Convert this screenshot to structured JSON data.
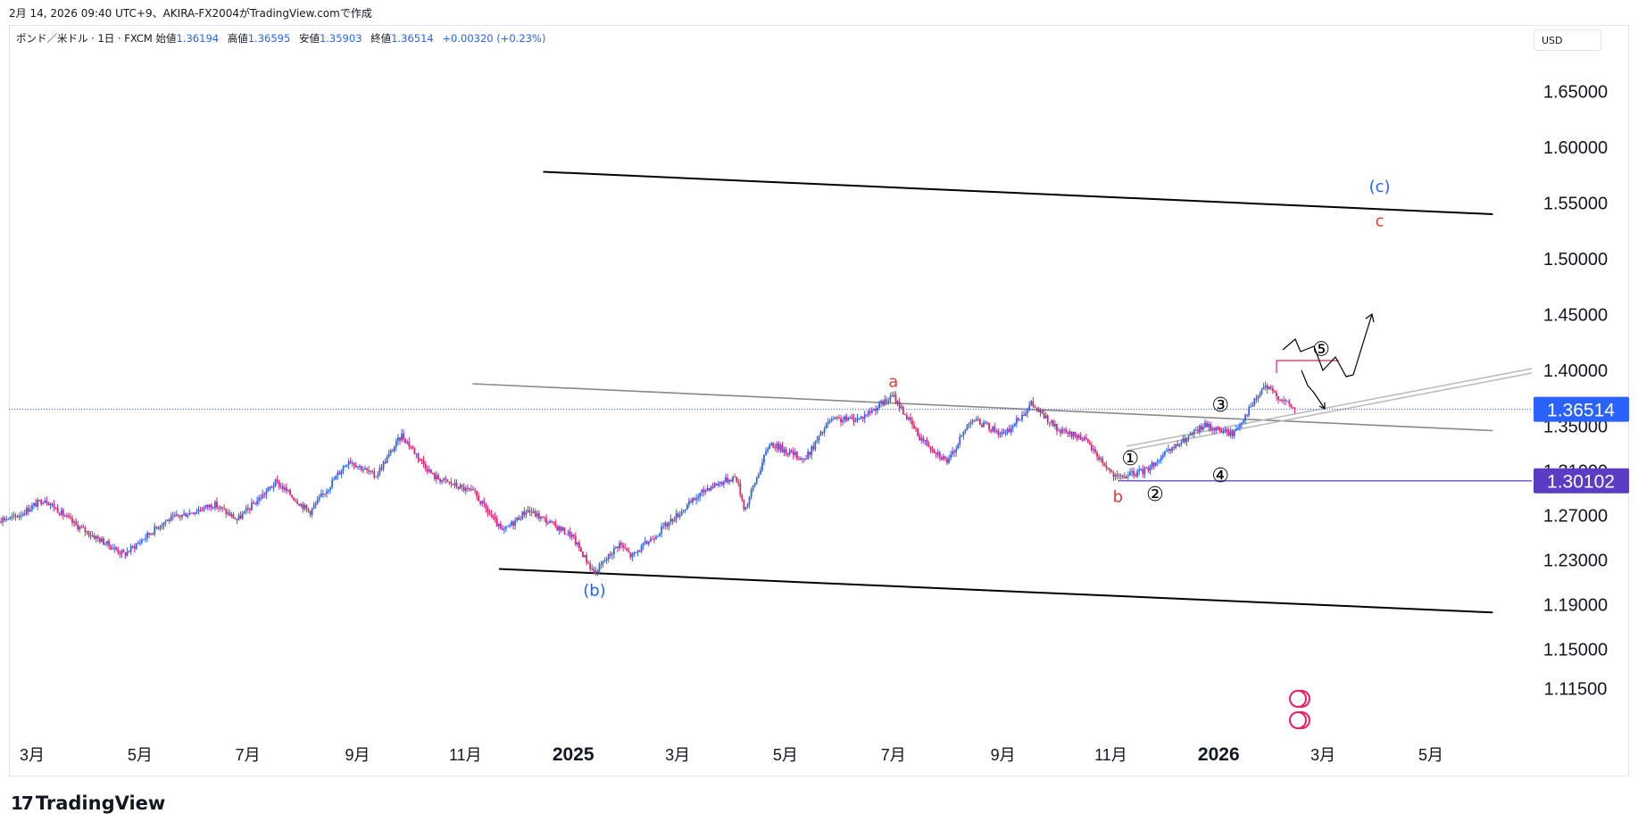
{
  "header": {
    "timestamp": "2月 14, 2026 09:40 UTC+9、AKIRA-FX2004がTradingView.comで作成"
  },
  "legend": {
    "symbol": "ポンド／米ドル · 1日 · FXCM",
    "open_label": "始値",
    "open": "1.36194",
    "high_label": "高値",
    "high": "1.36595",
    "low_label": "安値",
    "low": "1.35903",
    "close_label": "終値",
    "close": "1.36514",
    "change": "+0.00320 (+0.23%)"
  },
  "currency_button": "USD",
  "brand": {
    "name": "TradingView",
    "logo_text": "17"
  },
  "colors": {
    "up": "#2962ff",
    "down": "#e91e63",
    "accent_label": "#2962ff",
    "horizontal_label": "#5b3cc4",
    "wave_red": "#e53935",
    "wave_blue": "#2962ff"
  },
  "chart_data": {
    "type": "candlestick",
    "y_axis": {
      "ticks": [
        "1.65000",
        "1.60000",
        "1.55000",
        "1.50000",
        "1.45000",
        "1.40000",
        "1.35000",
        "1.31000",
        "1.27000",
        "1.23000",
        "1.19000",
        "1.15000",
        "1.11500"
      ],
      "tick_values": [
        1.65,
        1.6,
        1.55,
        1.5,
        1.45,
        1.4,
        1.35,
        1.31,
        1.27,
        1.23,
        1.19,
        1.15,
        1.115
      ]
    },
    "x_axis": {
      "labels": [
        {
          "text": "3月",
          "date": "2024-03-01",
          "bold": false
        },
        {
          "text": "5月",
          "date": "2024-05-01",
          "bold": false
        },
        {
          "text": "7月",
          "date": "2024-07-01",
          "bold": false
        },
        {
          "text": "9月",
          "date": "2024-09-01",
          "bold": false
        },
        {
          "text": "11月",
          "date": "2024-11-01",
          "bold": false
        },
        {
          "text": "2025",
          "date": "2025-01-01",
          "bold": true
        },
        {
          "text": "3月",
          "date": "2025-03-01",
          "bold": false
        },
        {
          "text": "5月",
          "date": "2025-05-01",
          "bold": false
        },
        {
          "text": "7月",
          "date": "2025-07-01",
          "bold": false
        },
        {
          "text": "9月",
          "date": "2025-09-01",
          "bold": false
        },
        {
          "text": "11月",
          "date": "2025-11-01",
          "bold": false
        },
        {
          "text": "2026",
          "date": "2026-01-01",
          "bold": true
        },
        {
          "text": "3月",
          "date": "2026-03-01",
          "bold": false
        },
        {
          "text": "5月",
          "date": "2026-05-01",
          "bold": false
        }
      ]
    },
    "price_path": [
      {
        "date": "2024-02-01",
        "price": 1.265
      },
      {
        "date": "2024-02-20",
        "price": 1.268
      },
      {
        "date": "2024-03-08",
        "price": 1.285
      },
      {
        "date": "2024-03-25",
        "price": 1.262
      },
      {
        "date": "2024-04-22",
        "price": 1.235
      },
      {
        "date": "2024-05-15",
        "price": 1.265
      },
      {
        "date": "2024-06-12",
        "price": 1.28
      },
      {
        "date": "2024-06-25",
        "price": 1.266
      },
      {
        "date": "2024-07-17",
        "price": 1.3
      },
      {
        "date": "2024-08-05",
        "price": 1.273
      },
      {
        "date": "2024-08-27",
        "price": 1.32
      },
      {
        "date": "2024-09-11",
        "price": 1.305
      },
      {
        "date": "2024-09-26",
        "price": 1.342
      },
      {
        "date": "2024-10-14",
        "price": 1.305
      },
      {
        "date": "2024-11-06",
        "price": 1.29
      },
      {
        "date": "2024-11-22",
        "price": 1.255
      },
      {
        "date": "2024-12-06",
        "price": 1.275
      },
      {
        "date": "2024-12-31",
        "price": 1.252
      },
      {
        "date": "2025-01-13",
        "price": 1.218
      },
      {
        "date": "2025-01-27",
        "price": 1.245
      },
      {
        "date": "2025-02-03",
        "price": 1.233
      },
      {
        "date": "2025-02-25",
        "price": 1.265
      },
      {
        "date": "2025-03-18",
        "price": 1.295
      },
      {
        "date": "2025-04-03",
        "price": 1.305
      },
      {
        "date": "2025-04-08",
        "price": 1.275
      },
      {
        "date": "2025-04-22",
        "price": 1.335
      },
      {
        "date": "2025-05-12",
        "price": 1.32
      },
      {
        "date": "2025-05-26",
        "price": 1.355
      },
      {
        "date": "2025-06-12",
        "price": 1.357
      },
      {
        "date": "2025-07-01",
        "price": 1.377
      },
      {
        "date": "2025-07-16",
        "price": 1.34
      },
      {
        "date": "2025-08-01",
        "price": 1.318
      },
      {
        "date": "2025-08-14",
        "price": 1.357
      },
      {
        "date": "2025-09-02",
        "price": 1.342
      },
      {
        "date": "2025-09-17",
        "price": 1.37
      },
      {
        "date": "2025-10-03",
        "price": 1.345
      },
      {
        "date": "2025-10-16",
        "price": 1.34
      },
      {
        "date": "2025-11-04",
        "price": 1.303
      },
      {
        "date": "2025-11-20",
        "price": 1.31
      },
      {
        "date": "2025-12-02",
        "price": 1.325
      },
      {
        "date": "2025-12-24",
        "price": 1.351
      },
      {
        "date": "2026-01-09",
        "price": 1.343
      },
      {
        "date": "2026-01-27",
        "price": 1.386
      },
      {
        "date": "2026-02-13",
        "price": 1.3651
      }
    ],
    "current_price": {
      "value": 1.36514,
      "label": "1.36514"
    },
    "horizontal_line": {
      "value": 1.30102,
      "label": "1.30102",
      "from_date": "2025-11-05"
    },
    "trend_lines": [
      {
        "name": "upper-channel",
        "from": {
          "date": "2024-12-15",
          "price": 1.578
        },
        "to": {
          "date": "2026-06-05",
          "price": 1.54
        }
      },
      {
        "name": "lower-channel",
        "from": {
          "date": "2024-11-20",
          "price": 1.222
        },
        "to": {
          "date": "2026-06-05",
          "price": 1.183
        }
      },
      {
        "name": "gray-resistance",
        "from": {
          "date": "2024-11-05",
          "price": 1.388
        },
        "to": {
          "date": "2026-06-05",
          "price": 1.346
        }
      }
    ],
    "wave_labels": [
      {
        "text": "a",
        "date": "2025-07-01",
        "price": 1.39,
        "color": "red"
      },
      {
        "text": "b",
        "date": "2025-11-05",
        "price": 1.287,
        "color": "red"
      },
      {
        "text": "c",
        "date": "2026-04-02",
        "price": 1.534,
        "color": "red"
      },
      {
        "text": "(b)",
        "date": "2025-01-13",
        "price": 1.203,
        "color": "blue"
      },
      {
        "text": "(c)",
        "date": "2026-04-02",
        "price": 1.565,
        "color": "blue"
      },
      {
        "text": "①",
        "date": "2025-11-12",
        "price": 1.32,
        "color": "black"
      },
      {
        "text": "②",
        "date": "2025-11-26",
        "price": 1.288,
        "color": "black"
      },
      {
        "text": "③",
        "date": "2026-01-02",
        "price": 1.368,
        "color": "black"
      },
      {
        "text": "④",
        "date": "2026-01-02",
        "price": 1.305,
        "color": "black"
      },
      {
        "text": "⑤",
        "date": "2026-02-28",
        "price": 1.418,
        "color": "black"
      }
    ],
    "title": "",
    "xlabel": "",
    "ylabel": "",
    "grid": false,
    "legend_position": "top-left"
  }
}
